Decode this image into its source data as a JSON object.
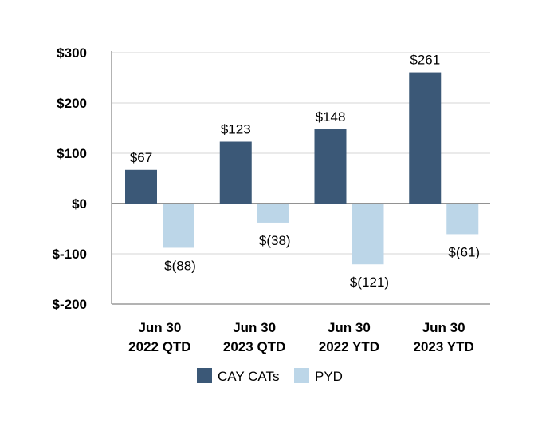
{
  "chart_data": {
    "type": "bar",
    "title": "",
    "xlabel": "",
    "ylabel": "",
    "ylim": [
      -200,
      300
    ],
    "yticks": [
      300,
      200,
      100,
      0,
      -100,
      -200
    ],
    "ytick_labels": [
      "$300",
      "$200",
      "$100",
      "$0",
      "$-100",
      "$-200"
    ],
    "categories": [
      {
        "line1": "Jun 30",
        "line2": "2022 QTD"
      },
      {
        "line1": "Jun 30",
        "line2": "2023 QTD"
      },
      {
        "line1": "Jun 30",
        "line2": "2022 YTD"
      },
      {
        "line1": "Jun 30",
        "line2": "2023 YTD"
      }
    ],
    "series": [
      {
        "name": "CAY CATs",
        "color": "#3b5877",
        "values": [
          67,
          123,
          148,
          261
        ],
        "labels": [
          "$67",
          "$123",
          "$148",
          "$261"
        ]
      },
      {
        "name": "PYD",
        "color": "#bcd6e8",
        "values": [
          -88,
          -38,
          -121,
          -61
        ],
        "labels": [
          "$(88)",
          "$(38)",
          "$(121)",
          "$(61)"
        ]
      }
    ],
    "grid": true,
    "legend": "bottom"
  }
}
